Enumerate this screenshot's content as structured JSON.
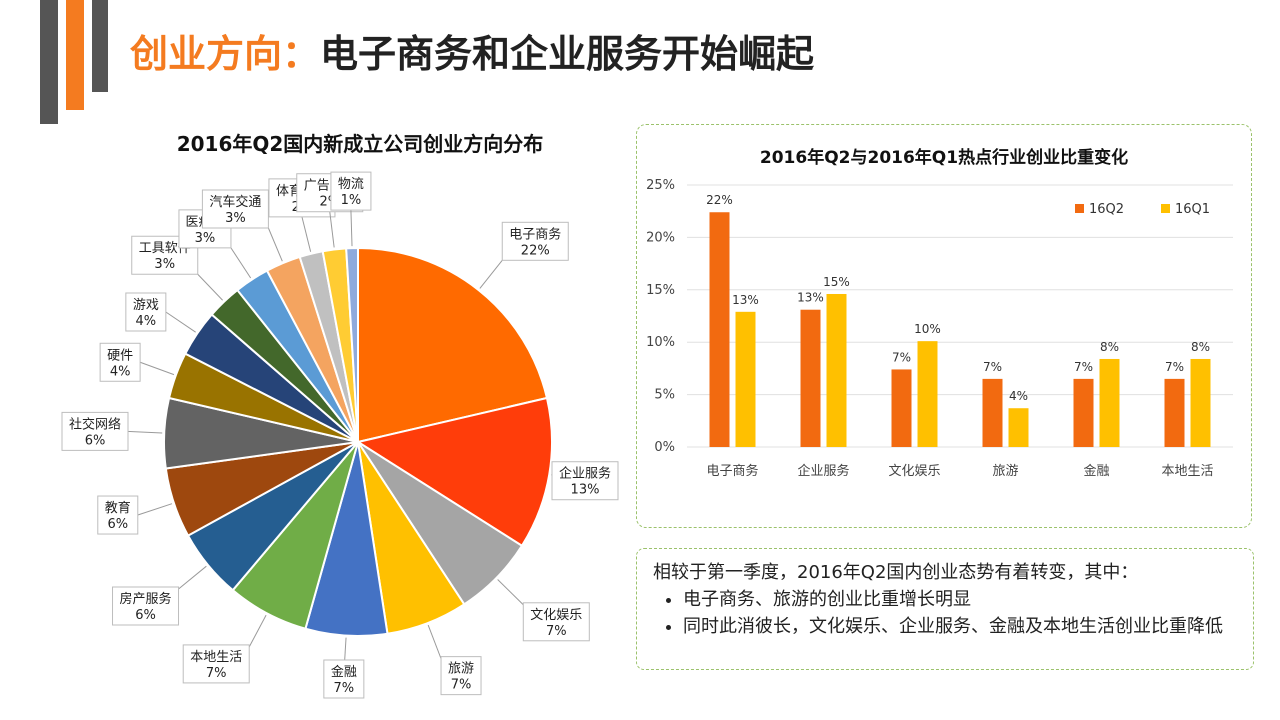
{
  "title": {
    "lead": "创业方向：",
    "rest": "电子商务和企业服务开始崛起"
  },
  "colors": {
    "accent": "#f47b20",
    "q2": "#f26a10",
    "q1": "#ffc000"
  },
  "chart_data": [
    {
      "type": "pie",
      "title": "2016年Q2国内新成立公司创业方向分布",
      "slices": [
        {
          "name": "电子商务",
          "value": 22,
          "label": "22%",
          "color": "#ff6a00"
        },
        {
          "name": "企业服务",
          "value": 13,
          "label": "13%",
          "color": "#ff3d0a"
        },
        {
          "name": "文化娱乐",
          "value": 7,
          "label": "7%",
          "color": "#a5a5a5"
        },
        {
          "name": "旅游",
          "value": 7,
          "label": "7%",
          "color": "#ffc000"
        },
        {
          "name": "金融",
          "value": 7,
          "label": "7%",
          "color": "#4472c4"
        },
        {
          "name": "本地生活",
          "value": 7,
          "label": "7%",
          "color": "#70ad47"
        },
        {
          "name": "房产服务",
          "value": 6,
          "label": "6%",
          "color": "#255e91"
        },
        {
          "name": "教育",
          "value": 6,
          "label": "6%",
          "color": "#9e480e"
        },
        {
          "name": "社交网络",
          "value": 6,
          "label": "6%",
          "color": "#636363"
        },
        {
          "name": "硬件",
          "value": 4,
          "label": "4%",
          "color": "#997300"
        },
        {
          "name": "游戏",
          "value": 4,
          "label": "4%",
          "color": "#264478"
        },
        {
          "name": "工具软件",
          "value": 3,
          "label": "3%",
          "color": "#43682b"
        },
        {
          "name": "医疗健",
          "value": 3,
          "label": "3%",
          "color": "#5b9bd5"
        },
        {
          "name": "汽车交通",
          "value": 3,
          "label": "3%",
          "color": "#f4a460"
        },
        {
          "name": "体育运动",
          "value": 2,
          "label": "2%",
          "color": "#c0c0c0"
        },
        {
          "name": "广告营销",
          "value": 2,
          "label": "2%",
          "color": "#ffcc33"
        },
        {
          "name": "物流",
          "value": 1,
          "label": "1%",
          "color": "#8faadc"
        }
      ]
    },
    {
      "type": "bar",
      "title": "2016年Q2与2016年Q1热点行业创业比重变化",
      "categories": [
        "电子商务",
        "企业服务",
        "文化娱乐",
        "旅游",
        "金融",
        "本地生活"
      ],
      "series": [
        {
          "name": "16Q2",
          "values": [
            22.4,
            13.1,
            7.4,
            6.5,
            6.5,
            6.5
          ],
          "labels": [
            "22%",
            "13%",
            "7%",
            "7%",
            "7%",
            "7%"
          ]
        },
        {
          "name": "16Q1",
          "values": [
            12.9,
            14.6,
            10.1,
            3.7,
            8.4,
            8.4
          ],
          "labels": [
            "13%",
            "15%",
            "10%",
            "4%",
            "8%",
            "8%"
          ]
        }
      ],
      "ylim": [
        0,
        25
      ],
      "yticks": [
        "0%",
        "5%",
        "10%",
        "15%",
        "20%",
        "25%"
      ],
      "legend": "top-right"
    }
  ],
  "note": {
    "intro": "相较于第一季度，2016年Q2国内创业态势有着转变，其中：",
    "bullets": [
      "电子商务、旅游的创业比重增长明显",
      "同时此消彼长，文化娱乐、企业服务、金融及本地生活创业比重降低"
    ]
  }
}
